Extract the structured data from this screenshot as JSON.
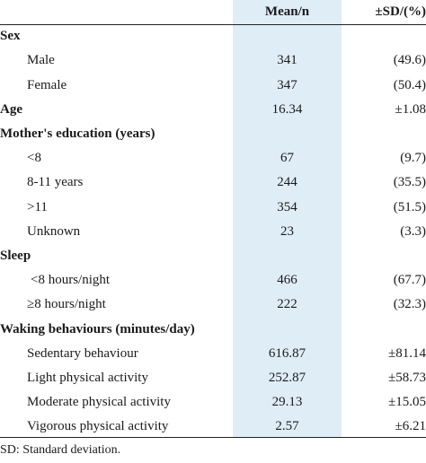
{
  "header": {
    "label": "",
    "mean": "Mean/n",
    "sd": "±SD/(%)"
  },
  "rows": [
    {
      "label": "Sex",
      "mean": "",
      "sd": "",
      "type": "section"
    },
    {
      "label": "Male",
      "mean": "341",
      "sd": "(49.6)",
      "type": "sub"
    },
    {
      "label": "Female",
      "mean": "347",
      "sd": "(50.4)",
      "type": "sub"
    },
    {
      "label": "Age",
      "mean": "16.34",
      "sd": "±1.08",
      "type": "section"
    },
    {
      "label": "Mother's education (years)",
      "mean": "",
      "sd": "",
      "type": "section"
    },
    {
      "label": "<8",
      "mean": "67",
      "sd": "(9.7)",
      "type": "sub"
    },
    {
      "label": "8-11 years",
      "mean": "244",
      "sd": "(35.5)",
      "type": "sub"
    },
    {
      "label": ">11",
      "mean": "354",
      "sd": "(51.5)",
      "type": "sub"
    },
    {
      "label": "Unknown",
      "mean": "23",
      "sd": "(3.3)",
      "type": "sub"
    },
    {
      "label": "Sleep",
      "mean": "",
      "sd": "",
      "type": "section"
    },
    {
      "label": "<8 hours/night",
      "mean": "466",
      "sd": "(67.7)",
      "type": "sub2"
    },
    {
      "label": "≥8 hours/night",
      "mean": "222",
      "sd": "(32.3)",
      "type": "sub"
    },
    {
      "label": "Waking behaviours (minutes/day)",
      "mean": "",
      "sd": "",
      "type": "section"
    },
    {
      "label": "Sedentary behaviour",
      "mean": "616.87",
      "sd": "±81.14",
      "type": "sub"
    },
    {
      "label": "Light physical activity",
      "mean": "252.87",
      "sd": "±58.73",
      "type": "sub"
    },
    {
      "label": "Moderate physical activity",
      "mean": "29.13",
      "sd": "±15.05",
      "type": "sub"
    },
    {
      "label": "Vigorous physical activity",
      "mean": "2.57",
      "sd": "±6.21",
      "type": "sub"
    }
  ],
  "footnote": "SD: Standard deviation."
}
